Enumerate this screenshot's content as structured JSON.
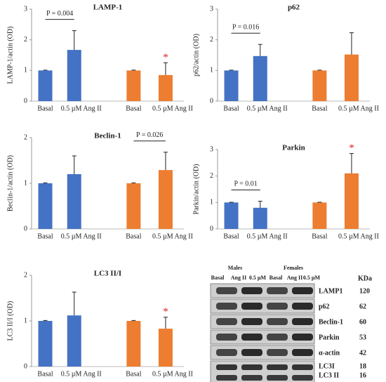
{
  "chart_data": [
    {
      "type": "bar",
      "title": "LAMP-1",
      "y_label": "LAMP-1/actin (OD)",
      "categories": [
        "Basal",
        "0.5 µM  Ang II",
        "Basal",
        "0.5 µM  Ang II"
      ],
      "values": [
        1.0,
        1.67,
        1.0,
        0.85
      ],
      "errors": [
        0.01,
        0.63,
        0.01,
        0.4
      ],
      "colors": [
        "#4472c4",
        "#4472c4",
        "#ed7d31",
        "#ed7d31"
      ],
      "ylim": [
        0,
        3
      ],
      "yticks": [
        0,
        1,
        2,
        3
      ],
      "annotations": [
        {
          "text": "P = 0.004",
          "from": 0,
          "to": 1
        },
        {
          "text": "*",
          "from": 3,
          "to": 3
        }
      ]
    },
    {
      "type": "bar",
      "title": "p62",
      "y_label": "p62/actin (OD)",
      "categories": [
        "Basal",
        "0.5 µM  Ang II",
        "Basal",
        "0.5 µM  Ang II"
      ],
      "values": [
        1.0,
        1.47,
        1.0,
        1.52
      ],
      "errors": [
        0.01,
        0.38,
        0.01,
        0.71
      ],
      "colors": [
        "#4472c4",
        "#4472c4",
        "#ed7d31",
        "#ed7d31"
      ],
      "ylim": [
        0,
        3
      ],
      "yticks": [
        0,
        1,
        2,
        3
      ],
      "annotations": [
        {
          "text": "P = 0.016",
          "from": 0,
          "to": 1
        }
      ]
    },
    {
      "type": "bar",
      "title": "Beclin-1",
      "y_label": "Beclin-1/actin (OD)",
      "categories": [
        "Basal",
        "0.5 µM  Ang II",
        "Basal",
        "0.5 µM  Ang II"
      ],
      "values": [
        1.0,
        1.2,
        1.0,
        1.29
      ],
      "errors": [
        0.01,
        0.4,
        0.01,
        0.39
      ],
      "colors": [
        "#4472c4",
        "#4472c4",
        "#ed7d31",
        "#ed7d31"
      ],
      "ylim": [
        0,
        2
      ],
      "yticks": [
        0,
        1,
        2
      ],
      "annotations": [
        {
          "text": "P = 0.026",
          "from": 2,
          "to": 3
        }
      ]
    },
    {
      "type": "bar",
      "title": "Parkin",
      "y_label": "Parkin/actin (OD)",
      "categories": [
        "Basal",
        "0.5 µM  Ang II",
        "Basal",
        "0.5 µM  Ang II"
      ],
      "values": [
        1.0,
        0.8,
        1.0,
        2.1
      ],
      "errors": [
        0.01,
        0.25,
        0.01,
        0.75
      ],
      "colors": [
        "#4472c4",
        "#4472c4",
        "#ed7d31",
        "#ed7d31"
      ],
      "ylim": [
        0,
        3
      ],
      "yticks": [
        0,
        1,
        2,
        3
      ],
      "annotations": [
        {
          "text": "P = 0.01",
          "from": 0,
          "to": 1
        },
        {
          "text": "*",
          "from": 3,
          "to": 3
        }
      ]
    },
    {
      "type": "bar",
      "title": "LC3 II/I",
      "y_label": "LC3 II/I (OD)",
      "categories": [
        "Basal",
        "0.5 µM  Ang II",
        "Basal",
        "0.5 µM  Ang II"
      ],
      "values": [
        1.0,
        1.12,
        1.0,
        0.83
      ],
      "errors": [
        0.01,
        0.51,
        0.01,
        0.25
      ],
      "colors": [
        "#4472c4",
        "#4472c4",
        "#ed7d31",
        "#ed7d31"
      ],
      "ylim": [
        0,
        2
      ],
      "yticks": [
        0,
        1,
        2
      ],
      "annotations": [
        {
          "text": "*",
          "from": 3,
          "to": 3
        }
      ]
    }
  ],
  "blot": {
    "groups": [
      "Males",
      "Females"
    ],
    "lanes": [
      "Basal",
      "Ang II",
      "0.5 µM",
      "Basal",
      "Ang II",
      "0.5 µM"
    ],
    "unit": "KDa",
    "rows": [
      {
        "name": "LAMP1",
        "kda": 120
      },
      {
        "name": "p62",
        "kda": 62
      },
      {
        "name": "Beclin-1",
        "kda": 60
      },
      {
        "name": "Parkin",
        "kda": 53
      },
      {
        "name": "α-actin",
        "kda": 42
      },
      {
        "name": "LC3I",
        "kda": 18
      },
      {
        "name": "LC3 II",
        "kda": 16
      }
    ]
  }
}
